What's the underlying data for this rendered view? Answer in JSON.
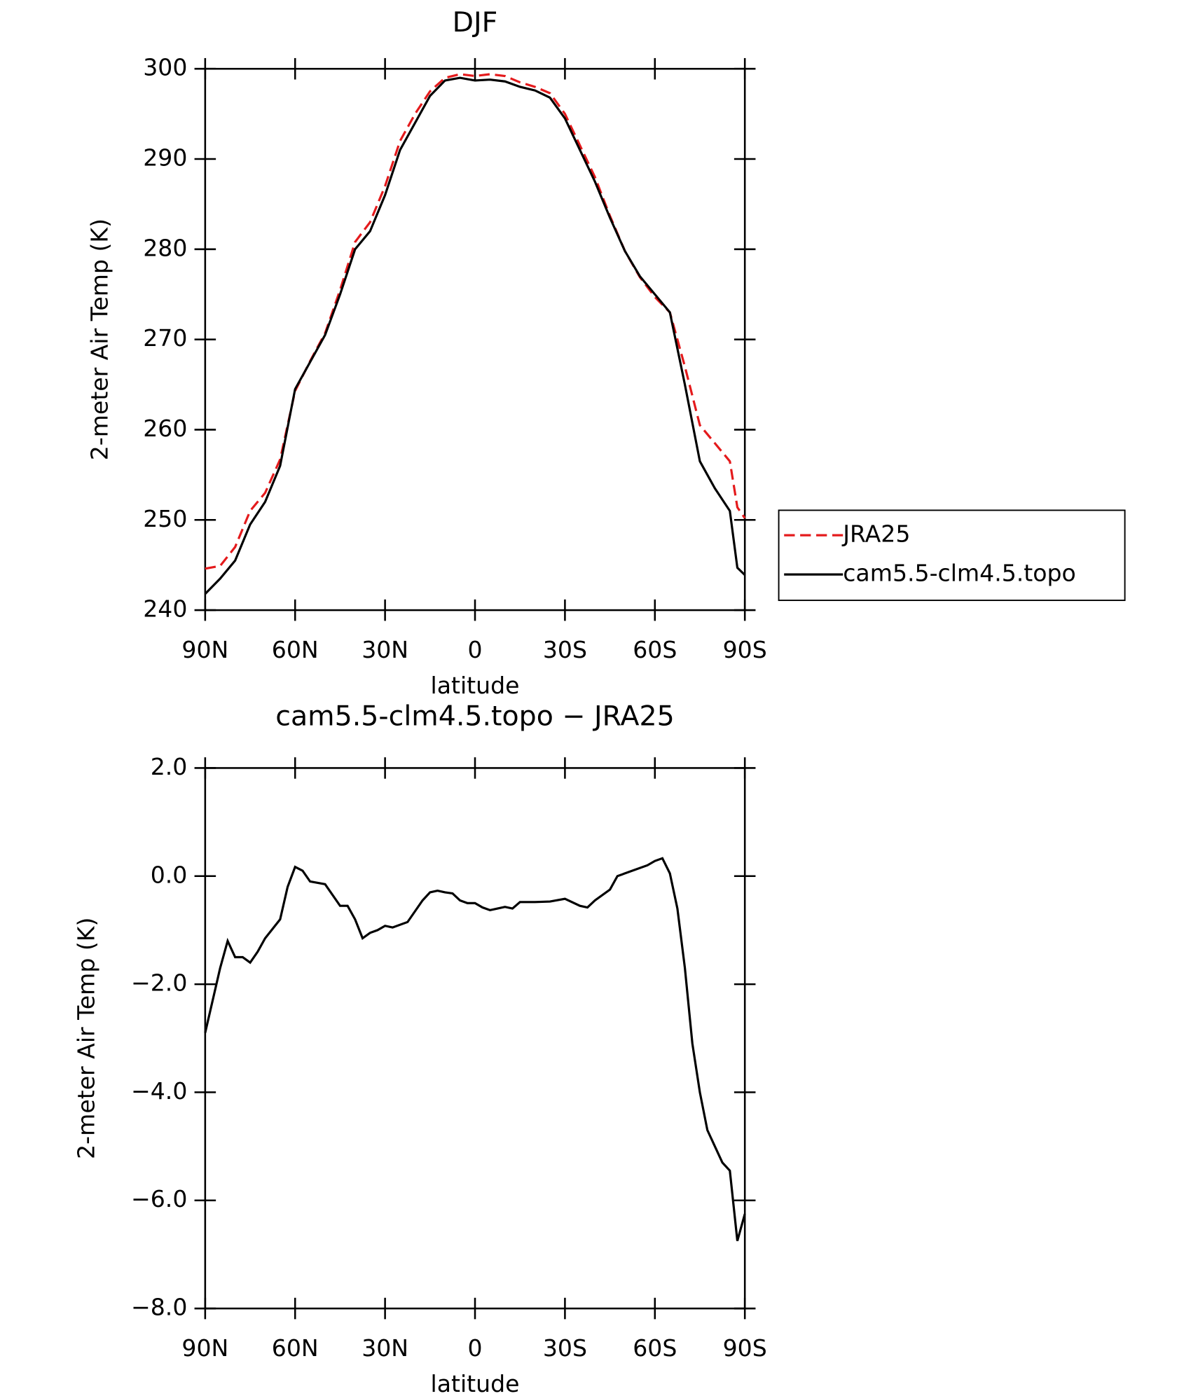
{
  "chart_data": [
    {
      "type": "line",
      "title": "DJF",
      "xlabel": "latitude",
      "ylabel": "2-meter Air Temp (K)",
      "xlim": [
        90,
        -90
      ],
      "xticks": [
        {
          "value": 90,
          "label": "90N"
        },
        {
          "value": 60,
          "label": "60N"
        },
        {
          "value": 30,
          "label": "30N"
        },
        0,
        {
          "value": -30,
          "label": "30S"
        },
        {
          "value": -60,
          "label": "60S"
        },
        {
          "value": -90,
          "label": "90S"
        }
      ],
      "ylim": [
        240,
        300
      ],
      "yticks": [
        240,
        250,
        260,
        270,
        280,
        290,
        300
      ],
      "x": [
        90,
        85,
        80,
        75,
        70,
        65,
        60,
        55,
        50,
        45,
        40,
        35,
        30,
        25,
        20,
        15,
        10,
        5,
        0,
        -5,
        -10,
        -15,
        -20,
        -25,
        -30,
        -35,
        -40,
        -45,
        -50,
        -55,
        -60,
        -65,
        -70,
        -75,
        -80,
        -85,
        -87.5,
        -90
      ],
      "legend": "outside-right",
      "series": [
        {
          "name": "JRA25",
          "color": "#e41a1c",
          "dash": true,
          "values": [
            244.6,
            244.9,
            247,
            251,
            253,
            256.7,
            264.3,
            267.6,
            270.7,
            275.5,
            280.8,
            283,
            287,
            292,
            295,
            297.5,
            299,
            299.4,
            299.2,
            299.4,
            299.2,
            298.5,
            298,
            297.3,
            295,
            291.5,
            288,
            283.7,
            279.8,
            276.9,
            274.7,
            273,
            267,
            260.5,
            258.5,
            256.5,
            251.4,
            250.2
          ]
        },
        {
          "name": "cam5.5-clm4.5.topo",
          "color": "#000000",
          "dash": false,
          "values": [
            241.8,
            243.5,
            245.5,
            249.5,
            252,
            256,
            264.5,
            267.5,
            270.5,
            275,
            280,
            282,
            286,
            291,
            294,
            297,
            298.7,
            299,
            298.7,
            298.8,
            298.6,
            298,
            297.6,
            296.8,
            294.5,
            291,
            287.5,
            283.5,
            279.8,
            277,
            275,
            273,
            265,
            256.5,
            253.5,
            251,
            244.7,
            243.9
          ]
        }
      ]
    },
    {
      "type": "line",
      "title": "cam5.5-clm4.5.topo − JRA25",
      "xlabel": "latitude",
      "ylabel": "2-meter Air Temp (K)",
      "xlim": [
        90,
        -90
      ],
      "xticks": [
        {
          "value": 90,
          "label": "90N"
        },
        {
          "value": 60,
          "label": "60N"
        },
        {
          "value": 30,
          "label": "30N"
        },
        0,
        {
          "value": -30,
          "label": "30S"
        },
        {
          "value": -60,
          "label": "60S"
        },
        {
          "value": -90,
          "label": "90S"
        }
      ],
      "ylim": [
        -8,
        2
      ],
      "yticks": [
        {
          "value": -8,
          "label": "−8.0"
        },
        {
          "value": -6,
          "label": "−6.0"
        },
        {
          "value": -4,
          "label": "−4.0"
        },
        {
          "value": -2,
          "label": "−2.0"
        },
        {
          "value": 0,
          "label": "0.0"
        },
        {
          "value": 2,
          "label": "2.0"
        }
      ],
      "color": "#000000",
      "x": [
        90,
        87.5,
        85,
        82.5,
        80,
        77.5,
        75,
        72.5,
        70,
        65,
        62.5,
        60,
        57.5,
        55,
        50,
        45,
        42.5,
        40,
        37.5,
        35,
        32.5,
        30,
        27.5,
        22.5,
        17.5,
        15,
        12.5,
        10,
        7.5,
        5,
        2.5,
        0,
        -2.5,
        -5,
        -7.5,
        -10,
        -12.5,
        -15,
        -20,
        -25,
        -30,
        -35,
        -37.5,
        -40,
        -45,
        -47.5,
        -52.5,
        -57.5,
        -60,
        -62.5,
        -65,
        -67.5,
        -70,
        -72.5,
        -75,
        -77.5,
        -80,
        -82.5,
        -85,
        -87.5,
        -90
      ],
      "values": [
        -2.9,
        -2.3,
        -1.7,
        -1.2,
        -1.5,
        -1.5,
        -1.6,
        -1.4,
        -1.15,
        -0.8,
        -0.2,
        0.17,
        0.1,
        -0.1,
        -0.15,
        -0.55,
        -0.55,
        -0.8,
        -1.15,
        -1.05,
        -1.0,
        -0.92,
        -0.95,
        -0.85,
        -0.45,
        -0.3,
        -0.27,
        -0.3,
        -0.32,
        -0.45,
        -0.5,
        -0.5,
        -0.58,
        -0.63,
        -0.6,
        -0.57,
        -0.6,
        -0.48,
        -0.48,
        -0.47,
        -0.42,
        -0.55,
        -0.58,
        -0.45,
        -0.25,
        0.0,
        0.1,
        0.2,
        0.28,
        0.33,
        0.05,
        -0.6,
        -1.7,
        -3.1,
        -4.0,
        -4.7,
        -5.0,
        -5.3,
        -5.45,
        -6.75,
        -6.25
      ]
    }
  ]
}
